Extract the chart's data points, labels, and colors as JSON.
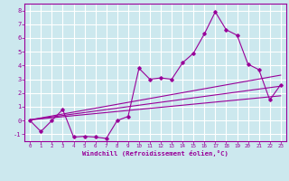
{
  "xlabel": "Windchill (Refroidissement éolien,°C)",
  "bg_color": "#cce8ee",
  "line_color": "#990099",
  "grid_color": "#ffffff",
  "x_pts": [
    0,
    1,
    2,
    3,
    4,
    5,
    6,
    7,
    8,
    9,
    10,
    11,
    12,
    13,
    14,
    15,
    16,
    17,
    18,
    19,
    20,
    21,
    22,
    23
  ],
  "y_pts": [
    0.0,
    -0.8,
    0.0,
    0.8,
    -1.2,
    -1.15,
    -1.2,
    -1.3,
    0.0,
    0.3,
    3.8,
    3.0,
    3.1,
    3.0,
    4.2,
    4.9,
    6.3,
    7.9,
    6.6,
    6.2,
    4.1,
    3.7,
    1.5,
    2.6
  ],
  "reg_lines": [
    {
      "x": [
        0,
        23
      ],
      "y": [
        0.05,
        3.3
      ]
    },
    {
      "x": [
        0,
        23
      ],
      "y": [
        0.05,
        2.5
      ]
    },
    {
      "x": [
        0,
        23
      ],
      "y": [
        0.05,
        1.8
      ]
    }
  ],
  "ylim": [
    -1.5,
    8.5
  ],
  "xlim": [
    -0.5,
    23.5
  ],
  "yticks": [
    -1,
    0,
    1,
    2,
    3,
    4,
    5,
    6,
    7,
    8
  ],
  "xticks": [
    0,
    1,
    2,
    3,
    4,
    5,
    6,
    7,
    8,
    9,
    10,
    11,
    12,
    13,
    14,
    15,
    16,
    17,
    18,
    19,
    20,
    21,
    22,
    23
  ]
}
